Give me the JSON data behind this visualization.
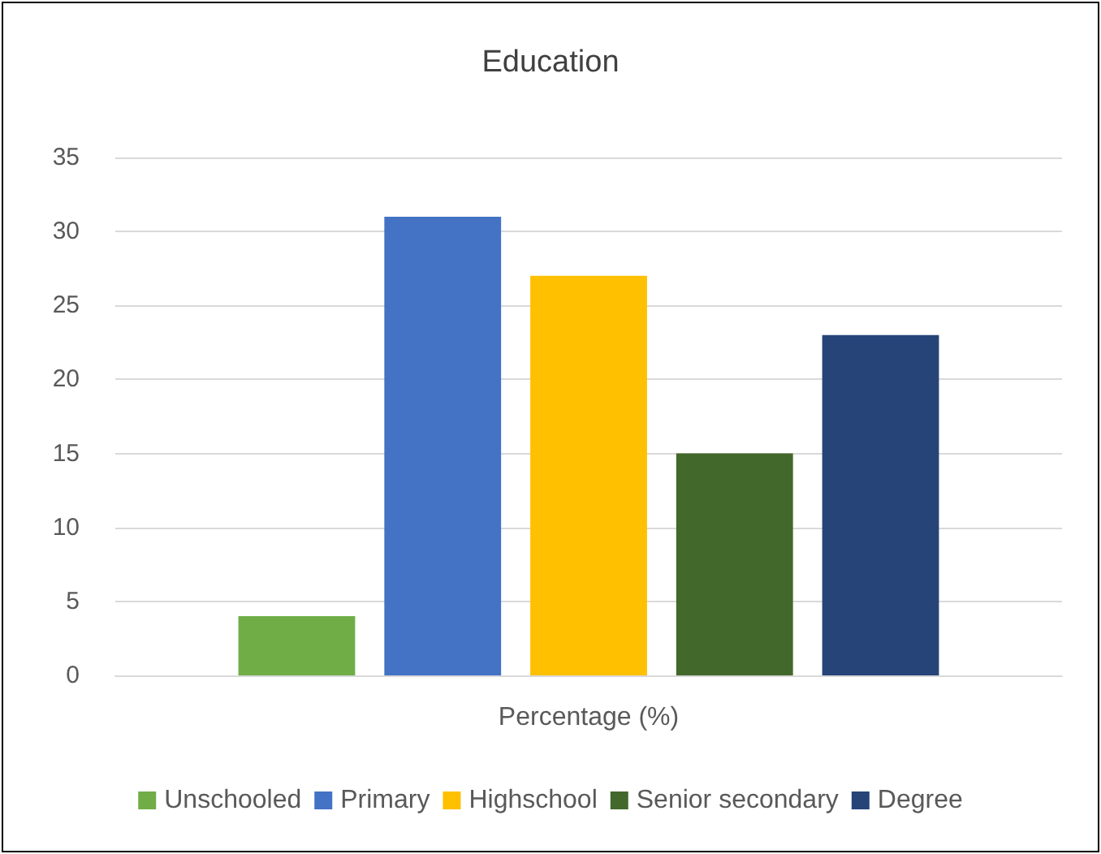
{
  "chart_data": {
    "type": "bar",
    "title": "Education",
    "categories": [
      "Percentage (%)"
    ],
    "series": [
      {
        "name": "Unschooled",
        "color": "#70ad47",
        "values": [
          4
        ]
      },
      {
        "name": "Primary",
        "color": "#4472c4",
        "values": [
          31
        ]
      },
      {
        "name": "Highschool",
        "color": "#ffc000",
        "values": [
          27
        ]
      },
      {
        "name": "Senior secondary",
        "color": "#43682b",
        "values": [
          15
        ]
      },
      {
        "name": "Degree",
        "color": "#264478",
        "values": [
          23
        ]
      }
    ],
    "ylim": [
      0,
      35
    ],
    "yticks": [
      0,
      5,
      10,
      15,
      20,
      25,
      30,
      35
    ],
    "grid": "y",
    "legend": "bottom"
  }
}
